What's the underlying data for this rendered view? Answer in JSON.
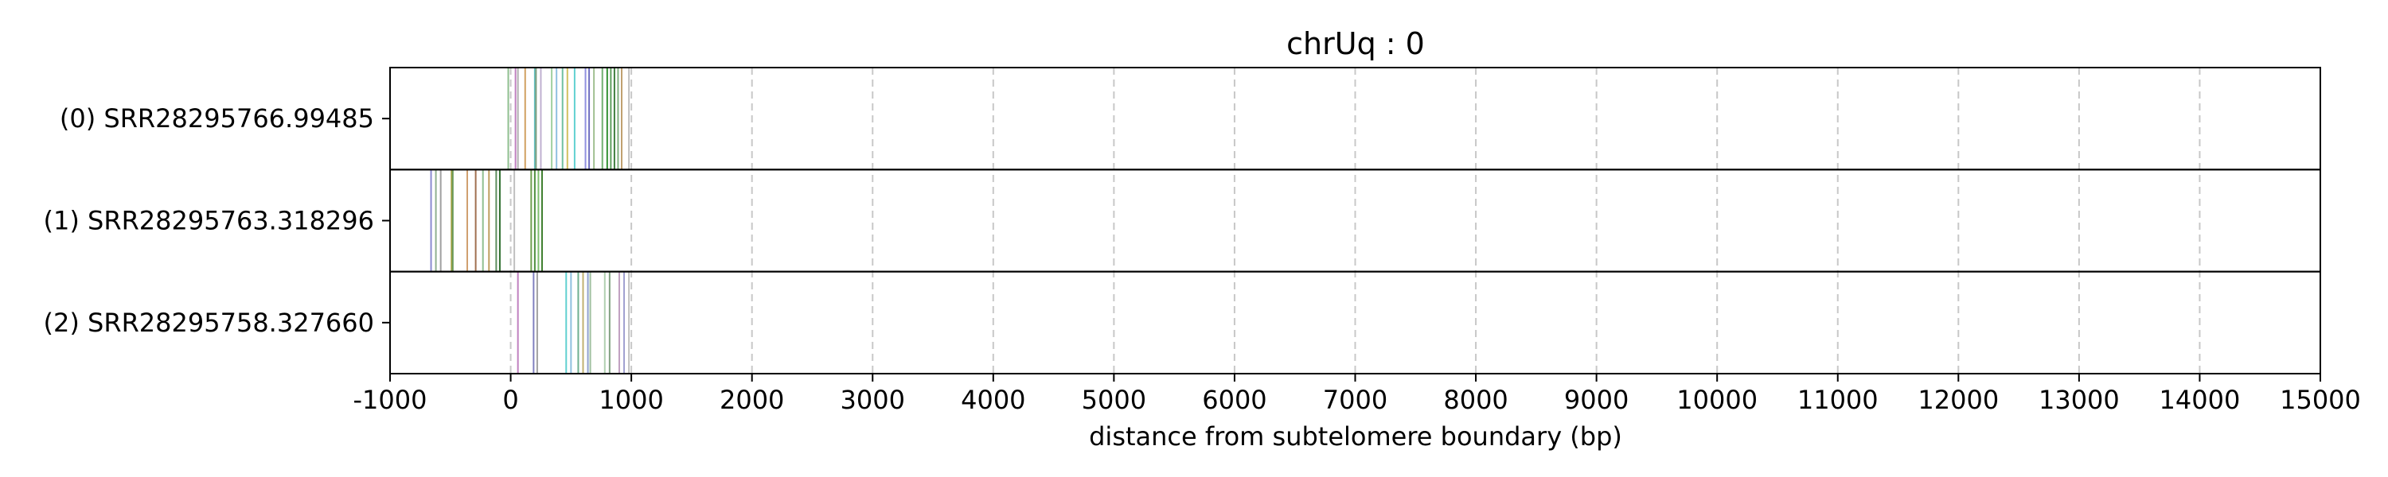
{
  "chart_data": {
    "type": "scatter",
    "title": "chrUq : 0",
    "xlabel": "distance from subtelomere boundary (bp)",
    "xlim": [
      -1000,
      15000
    ],
    "xticks": [
      -1000,
      0,
      1000,
      2000,
      3000,
      4000,
      5000,
      6000,
      7000,
      8000,
      9000,
      10000,
      11000,
      12000,
      13000,
      14000,
      15000
    ],
    "xtick_labels": [
      "-1000",
      "0",
      "1000",
      "2000",
      "3000",
      "4000",
      "5000",
      "6000",
      "7000",
      "8000",
      "9000",
      "10000",
      "11000",
      "12000",
      "13000",
      "14000",
      "15000"
    ],
    "grid": "vertical dashed",
    "rows": [
      {
        "label": "(0) SRR28295766.99485",
        "marks": [
          {
            "x": -20,
            "color": "#8fbf8f"
          },
          {
            "x": 40,
            "color": "#c080c0"
          },
          {
            "x": 60,
            "color": "#b0b0b0"
          },
          {
            "x": 120,
            "color": "#d0a060"
          },
          {
            "x": 200,
            "color": "#60c0c0"
          },
          {
            "x": 210,
            "color": "#80a080"
          },
          {
            "x": 250,
            "color": "#c0b0d0"
          },
          {
            "x": 340,
            "color": "#a0d0a0"
          },
          {
            "x": 380,
            "color": "#90c0e0"
          },
          {
            "x": 430,
            "color": "#70c0a0"
          },
          {
            "x": 470,
            "color": "#d0c060"
          },
          {
            "x": 530,
            "color": "#60d0d0"
          },
          {
            "x": 620,
            "color": "#9090e0"
          },
          {
            "x": 650,
            "color": "#7070c0"
          },
          {
            "x": 690,
            "color": "#a0c090"
          },
          {
            "x": 760,
            "color": "#70b070"
          },
          {
            "x": 800,
            "color": "#2f8f2f"
          },
          {
            "x": 830,
            "color": "#60a060"
          },
          {
            "x": 860,
            "color": "#3f7f3f"
          },
          {
            "x": 890,
            "color": "#80b080"
          },
          {
            "x": 920,
            "color": "#c0a070"
          },
          {
            "x": 980,
            "color": "#c0c0c0"
          }
        ]
      },
      {
        "label": "(1) SRR28295763.318296",
        "marks": [
          {
            "x": -660,
            "color": "#8a8ad0"
          },
          {
            "x": -620,
            "color": "#90b090"
          },
          {
            "x": -580,
            "color": "#a0a0a0"
          },
          {
            "x": -490,
            "color": "#a0a040"
          },
          {
            "x": -480,
            "color": "#6a9a5a"
          },
          {
            "x": -360,
            "color": "#d0a070"
          },
          {
            "x": -290,
            "color": "#a07050"
          },
          {
            "x": -230,
            "color": "#90c090"
          },
          {
            "x": -180,
            "color": "#c0a060"
          },
          {
            "x": -120,
            "color": "#5f8f5f"
          },
          {
            "x": -90,
            "color": "#2f6f2f"
          },
          {
            "x": 30,
            "color": "#c0c0c0"
          },
          {
            "x": 170,
            "color": "#70a050"
          },
          {
            "x": 200,
            "color": "#4f8f3f"
          },
          {
            "x": 230,
            "color": "#7fbf6f"
          },
          {
            "x": 260,
            "color": "#3f7f2f"
          }
        ]
      },
      {
        "label": "(2) SRR28295758.327660",
        "marks": [
          {
            "x": 60,
            "color": "#c080c0"
          },
          {
            "x": 190,
            "color": "#8080c0"
          },
          {
            "x": 220,
            "color": "#a0a0a0"
          },
          {
            "x": 460,
            "color": "#60d0d0"
          },
          {
            "x": 500,
            "color": "#90c0e0"
          },
          {
            "x": 560,
            "color": "#70b090"
          },
          {
            "x": 600,
            "color": "#c0b070"
          },
          {
            "x": 640,
            "color": "#90a0d0"
          },
          {
            "x": 660,
            "color": "#a0c0a0"
          },
          {
            "x": 780,
            "color": "#b0d0b0"
          },
          {
            "x": 820,
            "color": "#80a080"
          },
          {
            "x": 900,
            "color": "#c0a0c0"
          },
          {
            "x": 940,
            "color": "#a0a0d0"
          },
          {
            "x": 980,
            "color": "#c0c0c0"
          }
        ]
      }
    ]
  }
}
